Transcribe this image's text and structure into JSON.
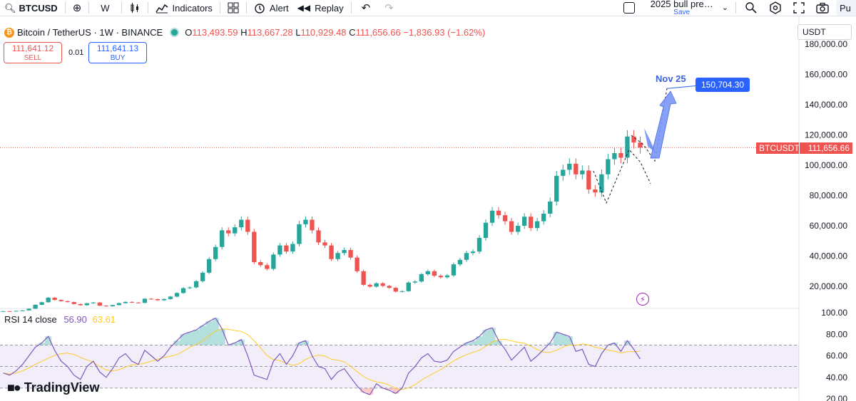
{
  "toolbar": {
    "symbol": "BTCUSD",
    "interval": "W",
    "indicators_label": "Indicators",
    "alert_label": "Alert",
    "replay_label": "Replay",
    "layout_name": "2025 bull pre…",
    "layout_save": "Save",
    "publish_label": "Pu"
  },
  "legend": {
    "title": "Bitcoin / TetherUS · 1W · BINANCE",
    "open_key": "O",
    "open": "113,493.59",
    "high_key": "H",
    "high": "113,667.28",
    "low_key": "L",
    "low": "110,929.48",
    "close_key": "C",
    "close": "111,656.66",
    "change": "−1,836.93 (−1.62%)"
  },
  "trade": {
    "sell_price": "111,641.12",
    "sell_label": "SELL",
    "spread": "0.01",
    "buy_price": "111,641.13",
    "buy_label": "BUY"
  },
  "currency": "USDT",
  "price_axis": [
    "180,000.00",
    "160,000.00",
    "140,000.00",
    "120,000.00",
    "100,000.00",
    "80,000.00",
    "60,000.00",
    "40,000.00",
    "20,000.00"
  ],
  "current_price": {
    "symbol": "BTCUSDT",
    "value": "111,656.66"
  },
  "annotation": {
    "label": "Nov 25",
    "target": "150,704.30"
  },
  "rsi": {
    "label": "RSI 14 close",
    "value": "56.90",
    "ma_value": "63.61",
    "axis": [
      "100.00",
      "80.00",
      "60.00",
      "40.00",
      "20.00"
    ]
  },
  "brand": "TradingView",
  "colors": {
    "up": "#26a69a",
    "down": "#ef5350",
    "rsi": "#7e57c2",
    "rsi_ma": "#ffca28",
    "accent": "#2962ff"
  },
  "chart_data": {
    "type": "candlestick",
    "title": "Bitcoin / TetherUS · 1W · BINANCE",
    "y_unit": "USDT",
    "ylim": [
      0,
      185000
    ],
    "closes": [
      3600,
      3500,
      3800,
      4100,
      5200,
      7800,
      9500,
      12500,
      11000,
      10200,
      9600,
      8300,
      7500,
      8800,
      9300,
      7200,
      6800,
      7600,
      8900,
      9700,
      9300,
      9100,
      11800,
      11500,
      10800,
      11600,
      13200,
      15600,
      18800,
      19300,
      23400,
      29000,
      38000,
      46000,
      57000,
      55000,
      59000,
      64000,
      56000,
      36000,
      34000,
      31500,
      41000,
      47000,
      43000,
      48000,
      61000,
      64000,
      57000,
      49000,
      47000,
      38000,
      42000,
      44000,
      39000,
      30000,
      21000,
      19800,
      22000,
      20300,
      19000,
      16500,
      16800,
      22500,
      23200,
      28000,
      30000,
      27000,
      26000,
      27200,
      34500,
      37500,
      42000,
      43000,
      52000,
      62000,
      70000,
      67000,
      63000,
      56000,
      60000,
      66000,
      58500,
      63000,
      68000,
      76000,
      93000,
      97000,
      101000,
      94000,
      96500,
      84000,
      82000,
      94000,
      104000,
      108000,
      105000,
      119000,
      115000,
      111656
    ],
    "x_range": [
      "2018",
      "2025-09"
    ],
    "projection": {
      "label": "Nov 25",
      "target": 150704.3,
      "path": [
        111656,
        103000,
        150704
      ]
    },
    "rsi_series": [
      44,
      42,
      46,
      52,
      60,
      68,
      72,
      78,
      65,
      55,
      50,
      42,
      38,
      50,
      55,
      45,
      40,
      48,
      58,
      62,
      55,
      52,
      65,
      60,
      55,
      60,
      68,
      74,
      80,
      82,
      84,
      88,
      92,
      95,
      85,
      70,
      72,
      75,
      60,
      42,
      40,
      38,
      55,
      62,
      52,
      60,
      72,
      74,
      60,
      50,
      48,
      38,
      45,
      48,
      40,
      32,
      26,
      24,
      34,
      30,
      28,
      25,
      30,
      44,
      50,
      58,
      62,
      55,
      54,
      56,
      64,
      68,
      72,
      74,
      78,
      84,
      86,
      74,
      66,
      56,
      62,
      68,
      55,
      60,
      66,
      72,
      82,
      80,
      78,
      64,
      66,
      52,
      50,
      62,
      70,
      72,
      64,
      74,
      66,
      57
    ]
  }
}
